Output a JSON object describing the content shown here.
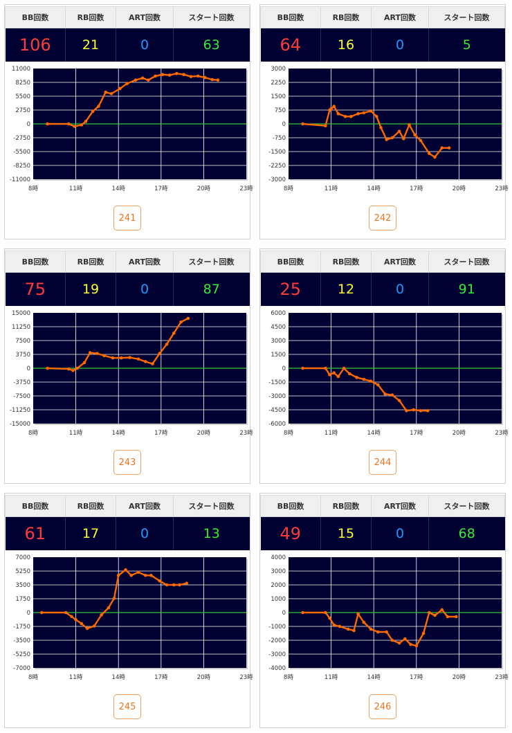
{
  "headers": [
    "BB回数",
    "RB回数",
    "ART回数",
    "スタート回数"
  ],
  "colors": {
    "bb": "#ff3b3b",
    "rb": "#ffff33",
    "art": "#1e9bff",
    "start": "#33ee33",
    "plot_bg": "#000032",
    "line": "#ff6a00",
    "zero_line": "#33cc33",
    "grid": "#ffffff"
  },
  "machines": [
    {
      "id": "241",
      "bb": "106",
      "rb": "21",
      "art": "0",
      "start": "63"
    },
    {
      "id": "242",
      "bb": "64",
      "rb": "16",
      "art": "0",
      "start": "5"
    },
    {
      "id": "243",
      "bb": "75",
      "rb": "19",
      "art": "0",
      "start": "87"
    },
    {
      "id": "244",
      "bb": "25",
      "rb": "12",
      "art": "0",
      "start": "91"
    },
    {
      "id": "245",
      "bb": "61",
      "rb": "17",
      "art": "0",
      "start": "13"
    },
    {
      "id": "246",
      "bb": "49",
      "rb": "15",
      "art": "0",
      "start": "68"
    }
  ],
  "chart_data": [
    {
      "type": "line",
      "machine": "241",
      "x_ticks": [
        "8時",
        "11時",
        "14時",
        "17時",
        "20時",
        "23時"
      ],
      "ylim": [
        -11000,
        11000
      ],
      "y_ticks": [
        "11000",
        "8250",
        "5500",
        "2750",
        "0",
        "-2750",
        "-5500",
        "-8250",
        "-11000"
      ],
      "x": [
        9.0,
        10.5,
        10.9,
        11.4,
        11.7,
        12.2,
        12.6,
        13.1,
        13.5,
        14.1,
        14.6,
        15.2,
        15.7,
        16.1,
        16.6,
        17.1,
        17.6,
        18.1,
        18.6,
        19.1,
        19.6,
        20.1,
        20.6,
        21.0
      ],
      "y": [
        0,
        0,
        -500,
        -200,
        500,
        2500,
        3500,
        6300,
        6000,
        7000,
        8000,
        8700,
        9100,
        8700,
        9500,
        9800,
        9700,
        10000,
        9800,
        9400,
        9500,
        9200,
        8800,
        8700
      ]
    },
    {
      "type": "line",
      "machine": "242",
      "x_ticks": [
        "8時",
        "11時",
        "14時",
        "17時",
        "20時",
        "23時"
      ],
      "ylim": [
        -3000,
        3000
      ],
      "y_ticks": [
        "3000",
        "2250",
        "1500",
        "750",
        "0",
        "-750",
        "-1500",
        "-2250",
        "-3000"
      ],
      "x": [
        9.0,
        10.6,
        10.9,
        11.0,
        11.2,
        11.5,
        12.0,
        12.4,
        12.9,
        13.3,
        13.8,
        14.2,
        14.5,
        14.9,
        15.3,
        15.8,
        16.1,
        16.5,
        16.9,
        17.3,
        17.9,
        18.3,
        18.8,
        19.3
      ],
      "y": [
        0,
        -100,
        750,
        820,
        950,
        550,
        400,
        400,
        550,
        600,
        700,
        400,
        -200,
        -850,
        -750,
        -400,
        -800,
        -50,
        -600,
        -900,
        -1600,
        -1800,
        -1300,
        -1300
      ]
    },
    {
      "type": "line",
      "machine": "243",
      "x_ticks": [
        "8時",
        "11時",
        "14時",
        "17時",
        "20時",
        "23時"
      ],
      "ylim": [
        -15000,
        15000
      ],
      "y_ticks": [
        "15000",
        "11250",
        "7500",
        "3750",
        "0",
        "-3750",
        "-7500",
        "-11250",
        "-15000"
      ],
      "x": [
        9.0,
        10.5,
        10.8,
        11.1,
        11.6,
        12.0,
        12.5,
        13.0,
        13.6,
        14.2,
        14.8,
        15.4,
        15.9,
        16.4,
        16.9,
        17.4,
        17.9,
        18.4,
        18.9
      ],
      "y": [
        0,
        -200,
        -600,
        0,
        1500,
        4200,
        4000,
        3400,
        2800,
        2800,
        2900,
        2500,
        1800,
        1200,
        4000,
        6500,
        9500,
        12500,
        13500
      ]
    },
    {
      "type": "line",
      "machine": "244",
      "x_ticks": [
        "8時",
        "11時",
        "14時",
        "17時",
        "20時",
        "23時"
      ],
      "ylim": [
        -6000,
        6000
      ],
      "y_ticks": [
        "6000",
        "4500",
        "3000",
        "1500",
        "0",
        "-1500",
        "-3000",
        "-4500",
        "-6000"
      ],
      "x": [
        9.0,
        10.6,
        10.9,
        11.2,
        11.5,
        11.9,
        12.3,
        12.8,
        13.3,
        13.8,
        14.3,
        14.8,
        15.3,
        15.8,
        16.3,
        16.8,
        17.3,
        17.8
      ],
      "y": [
        0,
        0,
        -700,
        -500,
        -900,
        0,
        -600,
        -1000,
        -1200,
        -1400,
        -1800,
        -2800,
        -2900,
        -3500,
        -4600,
        -4500,
        -4600,
        -4600
      ]
    },
    {
      "type": "line",
      "machine": "245",
      "x_ticks": [
        "8時",
        "11時",
        "14時",
        "17時",
        "20時",
        "23時"
      ],
      "ylim": [
        -7000,
        7000
      ],
      "y_ticks": [
        "7000",
        "5250",
        "3500",
        "1750",
        "0",
        "-1750",
        "-3500",
        "-5250",
        "-7000"
      ],
      "x": [
        8.6,
        10.3,
        10.7,
        11.0,
        11.4,
        11.8,
        12.3,
        12.8,
        13.3,
        13.7,
        14.0,
        14.5,
        14.9,
        15.4,
        15.9,
        16.3,
        16.9,
        17.4,
        17.9,
        18.3,
        18.8
      ],
      "y": [
        0,
        0,
        -500,
        -900,
        -1400,
        -2000,
        -1700,
        -300,
        600,
        1800,
        4700,
        5400,
        4700,
        5100,
        4700,
        4700,
        4000,
        3500,
        3500,
        3500,
        3700
      ]
    },
    {
      "type": "line",
      "machine": "246",
      "x_ticks": [
        "8時",
        "11時",
        "14時",
        "17時",
        "20時",
        "23時"
      ],
      "ylim": [
        -4000,
        4000
      ],
      "y_ticks": [
        "4000",
        "3000",
        "2000",
        "1000",
        "0",
        "-1000",
        "-2000",
        "-3000",
        "-4000"
      ],
      "x": [
        9.0,
        10.6,
        10.9,
        11.2,
        11.6,
        12.2,
        12.6,
        12.9,
        13.3,
        13.8,
        14.3,
        14.9,
        15.3,
        15.8,
        16.2,
        16.6,
        17.0,
        17.5,
        17.9,
        18.3,
        18.8,
        19.2,
        19.8
      ],
      "y": [
        0,
        0,
        -400,
        -900,
        -1000,
        -1200,
        -1300,
        -100,
        -700,
        -1200,
        -1400,
        -1400,
        -2000,
        -2200,
        -1900,
        -2300,
        -2400,
        -1500,
        0,
        -200,
        200,
        -300,
        -300
      ]
    }
  ]
}
